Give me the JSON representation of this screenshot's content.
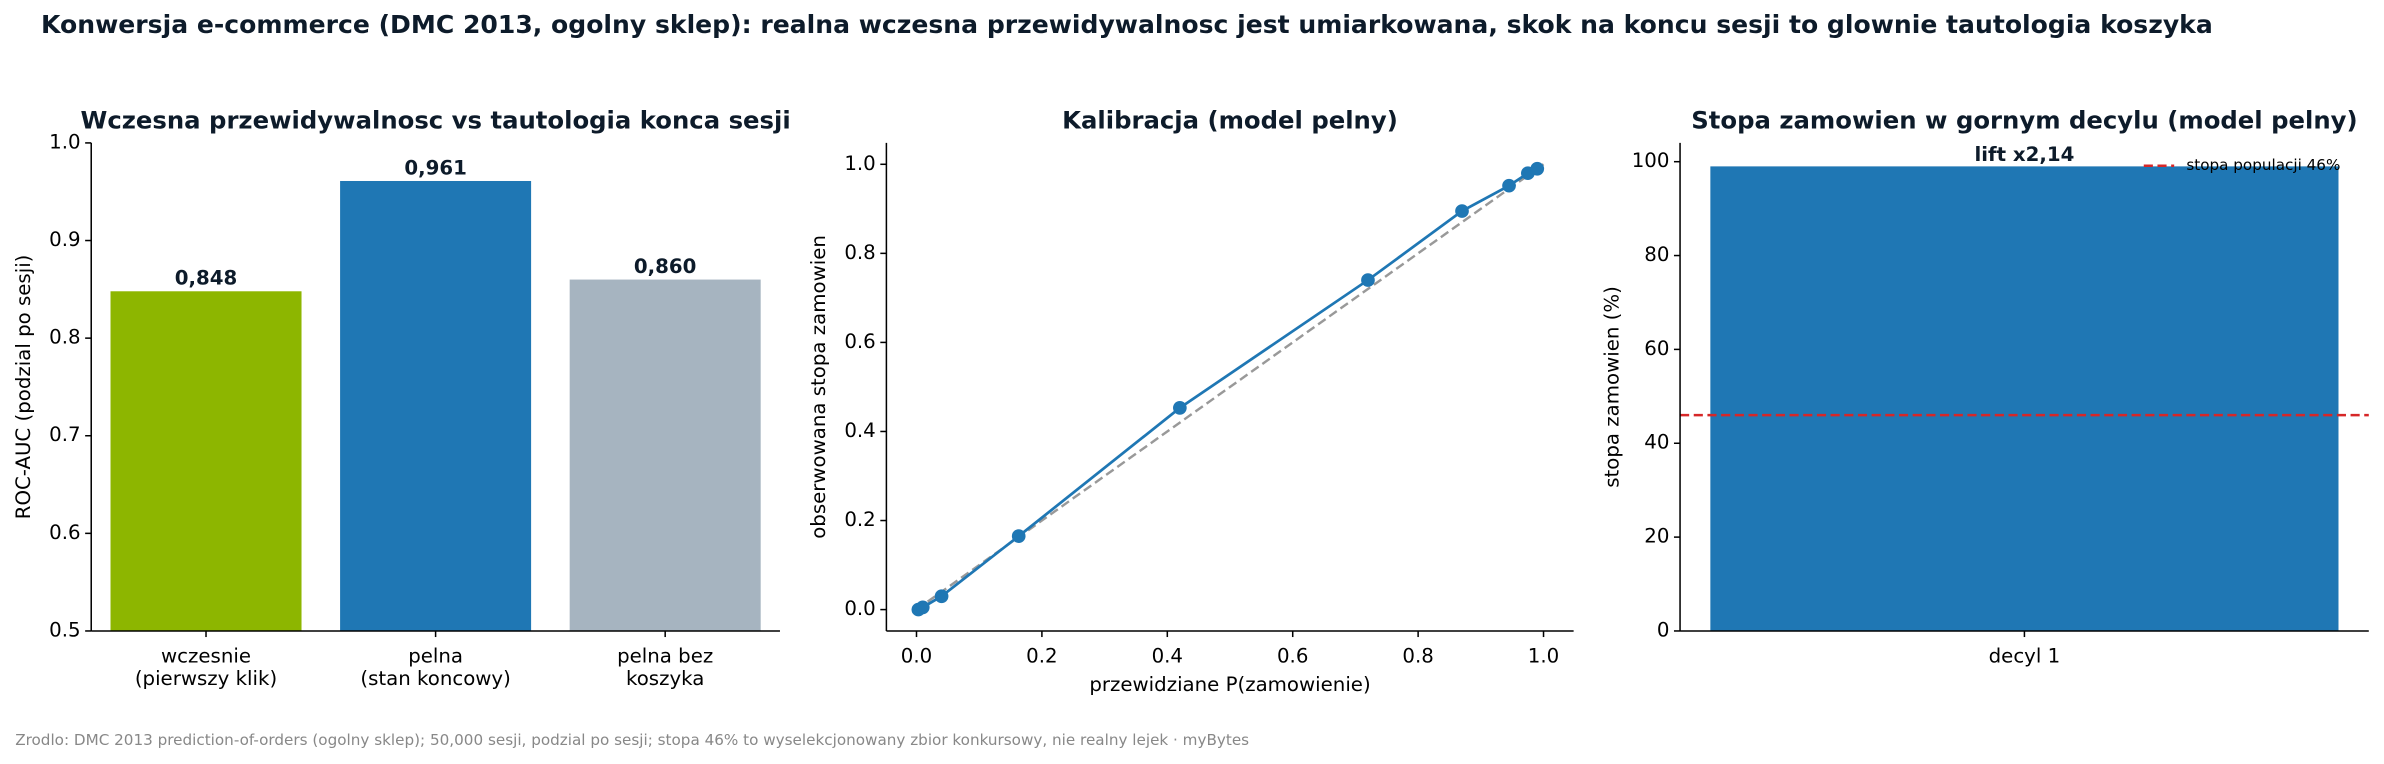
{
  "title": "Konwersja e-commerce (DMC 2013, ogolny sklep): realna wczesna przewidywalnosc jest umiarkowana, skok na koncu sesji to glownie tautologia koszyka",
  "footer": "Zrodlo: DMC 2013 prediction-of-orders (ogolny sklep); 50,000 sesji, podzial po sesji; stopa 46% to wyselekcjonowany zbior konkursowy, nie realny lejek · myBytes",
  "chart_data": [
    {
      "type": "bar",
      "title": "Wczesna przewidywalnosc vs tautologia konca sesji",
      "categories": [
        [
          "wczesnie",
          "(pierwszy klik)"
        ],
        [
          "pelna",
          "(stan koncowy)"
        ],
        [
          "pelna bez",
          "koszyka"
        ]
      ],
      "values": [
        0.848,
        0.961,
        0.86
      ],
      "value_labels": [
        "0,848",
        "0,961",
        "0,860"
      ],
      "colors": [
        "#8db600",
        "#1f77b4",
        "#a6b4c0"
      ],
      "ylabel": "ROC-AUC (podzial po sesji)",
      "ylim": [
        0.5,
        1.0
      ],
      "yticks": [
        0.5,
        0.6,
        0.7,
        0.8,
        0.9,
        {
          "value": 1,
          "label": "1.0"
        }
      ]
    },
    {
      "type": "line",
      "title": "Kalibracja (model pelny)",
      "x": [
        0.003,
        0.01,
        0.04,
        0.163,
        0.42,
        0.72,
        0.87,
        0.945,
        0.975,
        0.99
      ],
      "series": [
        {
          "color": "#1f77b4",
          "values": [
            0.0,
            0.005,
            0.03,
            0.165,
            0.453,
            0.74,
            0.895,
            0.952,
            0.98,
            0.99
          ]
        }
      ],
      "diagonal": {
        "x": [
          0,
          1
        ],
        "y": [
          0,
          1
        ],
        "color": "#999999"
      },
      "xlabel": "przewidziane P(zamowienie)",
      "ylabel": "obserwowana stopa zamowien",
      "xlim": [
        -0.048,
        1.048
      ],
      "ylim": [
        -0.048,
        1.048
      ],
      "xticks": [
        {
          "value": 0,
          "label": "0.0"
        },
        0.2,
        0.4,
        0.6,
        0.8,
        {
          "value": 1,
          "label": "1.0"
        }
      ],
      "yticks": [
        {
          "value": 0,
          "label": "0.0"
        },
        0.2,
        0.4,
        0.6,
        0.8,
        {
          "value": 1,
          "label": "1.0"
        }
      ]
    },
    {
      "type": "bar",
      "title": "Stopa zamowien w gornym decylu (model pelny)",
      "categories": [
        [
          "decyl 1"
        ]
      ],
      "values": [
        99
      ],
      "colors": [
        "#1f77b4"
      ],
      "annotation": "lift x2,14",
      "reference": {
        "value": 46,
        "label": "stopa populacji 46%",
        "color": "#d62728"
      },
      "ylabel": "stopa zamowien (%)",
      "ylim": [
        0,
        104
      ],
      "yticks": [
        0,
        20,
        40,
        60,
        80,
        100
      ]
    }
  ]
}
